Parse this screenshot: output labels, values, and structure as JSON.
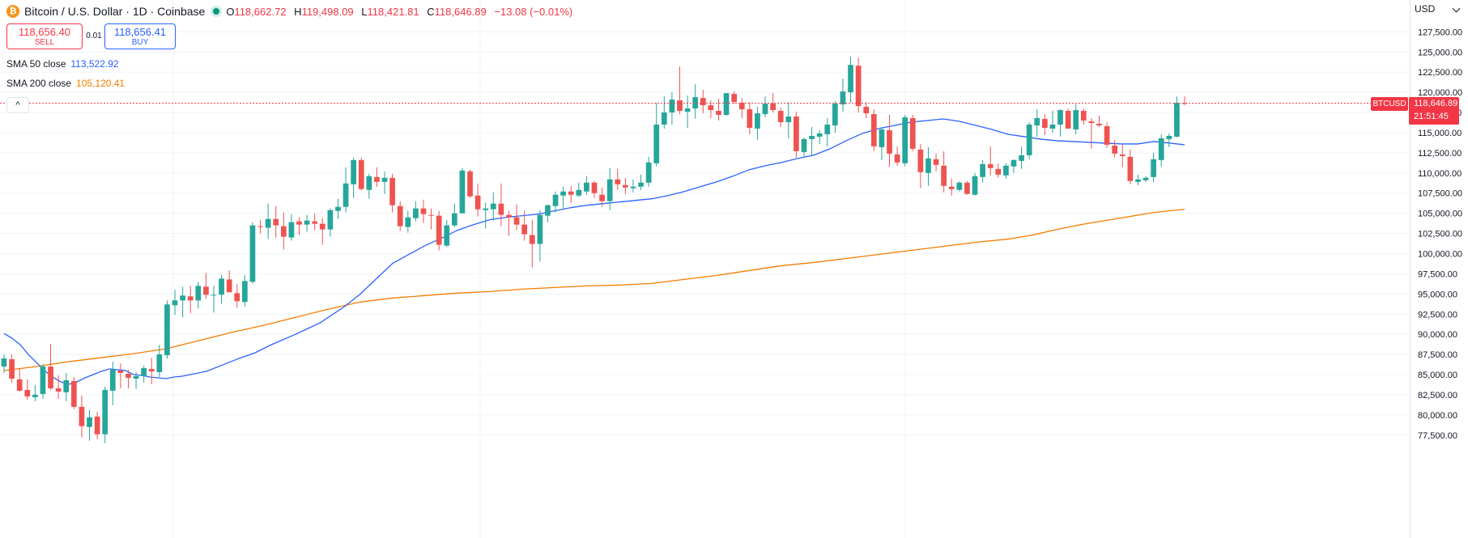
{
  "header": {
    "coin_icon_glyph": "₿",
    "symbol": "Bitcoin / U.S. Dollar · 1D · Coinbase",
    "open_label": "O",
    "open": "118,662.72",
    "high_label": "H",
    "high": "119,498.09",
    "low_label": "L",
    "low": "118,421.81",
    "close_label": "C",
    "close": "118,646.89",
    "change": "−13.08 (−0.01%)"
  },
  "trade": {
    "sell_price": "118,656.40",
    "sell_label": "SELL",
    "spread": "0.01",
    "buy_price": "118,656.41",
    "buy_label": "BUY"
  },
  "indicators": [
    {
      "name": "SMA 50 close",
      "value": "113,522.92",
      "color": "#2962ff"
    },
    {
      "name": "SMA 200 close",
      "value": "105,120.41",
      "color": "#f57c00"
    }
  ],
  "collapse_glyph": "^",
  "currency": "USD",
  "price_tag": {
    "symbol": "BTCUSD",
    "price": "118,646.89",
    "countdown": "21:51:45",
    "color": "#f23645"
  },
  "colors": {
    "up": "#26a69a",
    "down": "#ef5350",
    "sma50": "#2962ff",
    "sma200": "#f57c00",
    "grid": "#f0f3fa"
  },
  "chart_data": {
    "type": "candlestick",
    "ylim": [
      76500,
      130000
    ],
    "y_ticks": [
      "77,500.00",
      "80,000.00",
      "82,500.00",
      "85,000.00",
      "87,500.00",
      "90,000.00",
      "92,500.00",
      "95,000.00",
      "97,500.00",
      "100,000.00",
      "102,500.00",
      "105,000.00",
      "107,500.00",
      "110,000.00",
      "112,500.00",
      "115,000.00",
      "117,500.00",
      "120,000.00",
      "122,500.00",
      "125,000.00",
      "127,500.00"
    ],
    "candles": [
      [
        86000,
        87500,
        85200,
        87000
      ],
      [
        86900,
        87500,
        84000,
        84500
      ],
      [
        84400,
        85800,
        82900,
        83000
      ],
      [
        83100,
        84400,
        81900,
        82300
      ],
      [
        82200,
        83700,
        81700,
        82500
      ],
      [
        82600,
        86300,
        82000,
        86000
      ],
      [
        86000,
        88800,
        83100,
        83300
      ],
      [
        83300,
        84900,
        82000,
        82900
      ],
      [
        82800,
        85200,
        81700,
        84300
      ],
      [
        84200,
        84700,
        80700,
        81000
      ],
      [
        81000,
        82400,
        77200,
        78600
      ],
      [
        78500,
        80600,
        76800,
        79700
      ],
      [
        79800,
        80400,
        77000,
        77600
      ],
      [
        77600,
        83500,
        76500,
        83100
      ],
      [
        83000,
        86600,
        81200,
        85600
      ],
      [
        85500,
        86400,
        83300,
        85200
      ],
      [
        85100,
        85600,
        83300,
        84600
      ],
      [
        84500,
        85300,
        83200,
        84800
      ],
      [
        84800,
        86100,
        84000,
        85800
      ],
      [
        85700,
        87100,
        83800,
        85400
      ],
      [
        85300,
        88700,
        84700,
        87500
      ],
      [
        87400,
        94200,
        87000,
        93700
      ],
      [
        93600,
        95500,
        92400,
        94200
      ],
      [
        94200,
        95900,
        92100,
        94800
      ],
      [
        94700,
        96000,
        92600,
        94200
      ],
      [
        94200,
        96500,
        93200,
        96000
      ],
      [
        95900,
        97600,
        94400,
        94900
      ],
      [
        94800,
        96000,
        92700,
        94900
      ],
      [
        94900,
        97400,
        93800,
        96900
      ],
      [
        96800,
        97900,
        95300,
        95200
      ],
      [
        95100,
        96200,
        93300,
        94100
      ],
      [
        94000,
        97300,
        93400,
        96600
      ],
      [
        96500,
        103900,
        96300,
        103500
      ],
      [
        103400,
        104200,
        102500,
        103300
      ],
      [
        103200,
        106200,
        101800,
        104300
      ],
      [
        104300,
        105900,
        102000,
        103500
      ],
      [
        103400,
        105100,
        100500,
        102100
      ],
      [
        102000,
        104900,
        101600,
        103900
      ],
      [
        104000,
        104500,
        102300,
        103600
      ],
      [
        103600,
        104800,
        102700,
        104100
      ],
      [
        104000,
        105000,
        102900,
        103700
      ],
      [
        103700,
        104400,
        101100,
        103000
      ],
      [
        103000,
        105600,
        102100,
        105400
      ],
      [
        105300,
        106800,
        104300,
        105800
      ],
      [
        105800,
        110700,
        105100,
        108700
      ],
      [
        108600,
        111900,
        106900,
        111600
      ],
      [
        111600,
        111900,
        107800,
        108000
      ],
      [
        107900,
        109900,
        106800,
        109600
      ],
      [
        109500,
        110700,
        108300,
        108900
      ],
      [
        108900,
        110200,
        107400,
        109400
      ],
      [
        109400,
        109900,
        105100,
        106000
      ],
      [
        105900,
        106500,
        102800,
        103400
      ],
      [
        103300,
        105300,
        102600,
        104500
      ],
      [
        104400,
        106500,
        104000,
        105600
      ],
      [
        105600,
        106700,
        103800,
        104900
      ],
      [
        104800,
        105600,
        103000,
        104700
      ],
      [
        104700,
        105300,
        100400,
        101100
      ],
      [
        101000,
        104200,
        100800,
        103500
      ],
      [
        103500,
        106200,
        103300,
        105000
      ],
      [
        105000,
        110600,
        105200,
        110300
      ],
      [
        110200,
        110400,
        106900,
        107100
      ],
      [
        107200,
        108700,
        104600,
        105500
      ],
      [
        105400,
        106300,
        103100,
        105600
      ],
      [
        105500,
        107600,
        104100,
        106200
      ],
      [
        106200,
        108700,
        103400,
        104800
      ],
      [
        104800,
        105300,
        102200,
        104500
      ],
      [
        104500,
        106100,
        102900,
        103600
      ],
      [
        103600,
        105300,
        101600,
        102400
      ],
      [
        102300,
        104200,
        98300,
        101200
      ],
      [
        101200,
        105400,
        99000,
        104800
      ],
      [
        104700,
        106100,
        103900,
        106000
      ],
      [
        105900,
        107700,
        105100,
        107300
      ],
      [
        107200,
        108300,
        105500,
        107700
      ],
      [
        107700,
        108400,
        106300,
        107300
      ],
      [
        107200,
        108800,
        107000,
        107900
      ],
      [
        107700,
        109600,
        107300,
        108800
      ],
      [
        108800,
        109000,
        106900,
        107500
      ],
      [
        107300,
        108200,
        105800,
        106500
      ],
      [
        106500,
        110600,
        105400,
        109200
      ],
      [
        109200,
        110500,
        107900,
        108600
      ],
      [
        108500,
        109400,
        107400,
        108200
      ],
      [
        108100,
        109200,
        107600,
        108300
      ],
      [
        108300,
        109800,
        107900,
        108800
      ],
      [
        108800,
        112000,
        108300,
        111300
      ],
      [
        111200,
        118700,
        110800,
        116000
      ],
      [
        116000,
        119500,
        115500,
        117500
      ],
      [
        117500,
        120000,
        116000,
        119100
      ],
      [
        119000,
        123200,
        117300,
        117700
      ],
      [
        117600,
        119600,
        115600,
        118000
      ],
      [
        118000,
        121000,
        116700,
        119400
      ],
      [
        119300,
        120300,
        117400,
        118400
      ],
      [
        118400,
        119000,
        116800,
        117800
      ],
      [
        117700,
        119200,
        116500,
        117200
      ],
      [
        117200,
        119800,
        117100,
        119900
      ],
      [
        119800,
        120100,
        118600,
        118800
      ],
      [
        118700,
        119300,
        116800,
        117900
      ],
      [
        117900,
        118800,
        114800,
        115600
      ],
      [
        115500,
        118200,
        114100,
        117400
      ],
      [
        117300,
        119500,
        116900,
        118600
      ],
      [
        118600,
        119900,
        117500,
        117800
      ],
      [
        117700,
        118100,
        115700,
        116300
      ],
      [
        116300,
        118800,
        114300,
        117000
      ],
      [
        117000,
        117600,
        111900,
        112700
      ],
      [
        112600,
        114400,
        111900,
        114200
      ],
      [
        114200,
        115700,
        112100,
        114600
      ],
      [
        114500,
        115300,
        113600,
        114900
      ],
      [
        114800,
        116800,
        113300,
        116000
      ],
      [
        115900,
        118900,
        115000,
        118600
      ],
      [
        118500,
        121700,
        117600,
        120100
      ],
      [
        120000,
        124400,
        118700,
        123400
      ],
      [
        123300,
        124300,
        117500,
        118300
      ],
      [
        118200,
        118800,
        116800,
        117400
      ],
      [
        117300,
        117900,
        112700,
        113300
      ],
      [
        113200,
        115700,
        111600,
        115400
      ],
      [
        115300,
        117200,
        110800,
        112400
      ],
      [
        112300,
        113300,
        110900,
        111300
      ],
      [
        111200,
        117200,
        110800,
        116900
      ],
      [
        116800,
        117200,
        112700,
        113000
      ],
      [
        112900,
        113600,
        108100,
        110100
      ],
      [
        110000,
        113200,
        108400,
        111800
      ],
      [
        111700,
        112400,
        110200,
        111000
      ],
      [
        110900,
        112700,
        107600,
        108400
      ],
      [
        108300,
        109300,
        107200,
        108000
      ],
      [
        107900,
        109000,
        107700,
        108800
      ],
      [
        108800,
        109000,
        107300,
        107400
      ],
      [
        107300,
        110000,
        107200,
        109600
      ],
      [
        109500,
        111600,
        108800,
        111100
      ],
      [
        111100,
        113300,
        109700,
        110600
      ],
      [
        110500,
        111200,
        109400,
        109800
      ],
      [
        109700,
        111200,
        109300,
        110900
      ],
      [
        110800,
        111700,
        110000,
        111600
      ],
      [
        111500,
        113300,
        110500,
        112200
      ],
      [
        112200,
        116300,
        111700,
        116000
      ],
      [
        115900,
        117900,
        114500,
        116800
      ],
      [
        116700,
        117300,
        114700,
        115600
      ],
      [
        115500,
        117700,
        115000,
        116000
      ],
      [
        116000,
        117900,
        114500,
        117800
      ],
      [
        117700,
        118000,
        115800,
        115500
      ],
      [
        115400,
        118500,
        114800,
        117800
      ],
      [
        117700,
        118000,
        116000,
        116500
      ],
      [
        116400,
        116800,
        113000,
        116200
      ],
      [
        116100,
        117100,
        115700,
        115900
      ],
      [
        115800,
        116300,
        113100,
        113500
      ],
      [
        113400,
        114100,
        111900,
        112400
      ],
      [
        112300,
        113600,
        110700,
        112100
      ],
      [
        112000,
        112900,
        108600,
        109000
      ],
      [
        108900,
        109800,
        108500,
        109200
      ],
      [
        109100,
        109600,
        108900,
        109400
      ],
      [
        109500,
        112500,
        108900,
        111700
      ],
      [
        111600,
        114800,
        110800,
        114300
      ],
      [
        114200,
        114900,
        113200,
        114600
      ],
      [
        114500,
        119500,
        114400,
        118700
      ],
      [
        118662.72,
        119498.09,
        118421.81,
        118646.89
      ]
    ],
    "sma50": [
      [
        0,
        90100
      ],
      [
        10,
        89500
      ],
      [
        20,
        88700
      ],
      [
        30,
        87500
      ],
      [
        40,
        86500
      ],
      [
        50,
        85500
      ],
      [
        60,
        84700
      ],
      [
        70,
        84100
      ],
      [
        80,
        83800
      ],
      [
        90,
        84100
      ],
      [
        100,
        84600
      ],
      [
        110,
        85000
      ],
      [
        120,
        85400
      ],
      [
        130,
        85700
      ],
      [
        140,
        85600
      ],
      [
        150,
        85500
      ],
      [
        160,
        85000
      ],
      [
        170,
        84900
      ],
      [
        180,
        84700
      ],
      [
        190,
        84600
      ],
      [
        200,
        84500
      ],
      [
        210,
        84700
      ],
      [
        220,
        84800
      ],
      [
        230,
        85000
      ],
      [
        250,
        85400
      ],
      [
        270,
        86200
      ],
      [
        290,
        87000
      ],
      [
        310,
        87700
      ],
      [
        330,
        88700
      ],
      [
        360,
        90000
      ],
      [
        390,
        91400
      ],
      [
        420,
        93400
      ],
      [
        440,
        95000
      ],
      [
        460,
        96900
      ],
      [
        480,
        98800
      ],
      [
        500,
        99900
      ],
      [
        520,
        101000
      ],
      [
        540,
        101900
      ],
      [
        560,
        102900
      ],
      [
        580,
        103600
      ],
      [
        600,
        104200
      ],
      [
        620,
        104500
      ],
      [
        640,
        104700
      ],
      [
        660,
        104900
      ],
      [
        680,
        105300
      ],
      [
        700,
        105700
      ],
      [
        720,
        106000
      ],
      [
        740,
        106200
      ],
      [
        760,
        106400
      ],
      [
        780,
        106600
      ],
      [
        800,
        106800
      ],
      [
        820,
        107200
      ],
      [
        840,
        107700
      ],
      [
        860,
        108300
      ],
      [
        880,
        108900
      ],
      [
        900,
        109600
      ],
      [
        920,
        110400
      ],
      [
        940,
        110900
      ],
      [
        960,
        111300
      ],
      [
        980,
        111800
      ],
      [
        1000,
        112200
      ],
      [
        1020,
        113000
      ],
      [
        1040,
        114000
      ],
      [
        1060,
        114900
      ],
      [
        1080,
        115500
      ],
      [
        1100,
        115900
      ],
      [
        1120,
        116300
      ],
      [
        1140,
        116500
      ],
      [
        1160,
        116700
      ],
      [
        1180,
        116400
      ],
      [
        1200,
        115900
      ],
      [
        1220,
        115400
      ],
      [
        1240,
        114800
      ],
      [
        1260,
        114500
      ],
      [
        1280,
        114200
      ],
      [
        1300,
        114000
      ],
      [
        1320,
        113900
      ],
      [
        1340,
        113800
      ],
      [
        1360,
        113700
      ],
      [
        1380,
        113600
      ],
      [
        1400,
        113600
      ],
      [
        1420,
        113900
      ],
      [
        1440,
        113700
      ],
      [
        1458,
        113500
      ]
    ],
    "sma200": [
      [
        0,
        85500
      ],
      [
        40,
        86000
      ],
      [
        80,
        86600
      ],
      [
        120,
        87100
      ],
      [
        160,
        87600
      ],
      [
        200,
        88200
      ],
      [
        240,
        89200
      ],
      [
        280,
        90200
      ],
      [
        320,
        91100
      ],
      [
        360,
        92100
      ],
      [
        400,
        93100
      ],
      [
        440,
        94000
      ],
      [
        480,
        94500
      ],
      [
        520,
        94800
      ],
      [
        560,
        95100
      ],
      [
        600,
        95300
      ],
      [
        640,
        95600
      ],
      [
        680,
        95800
      ],
      [
        720,
        96000
      ],
      [
        760,
        96100
      ],
      [
        800,
        96300
      ],
      [
        840,
        96800
      ],
      [
        880,
        97300
      ],
      [
        920,
        97900
      ],
      [
        960,
        98500
      ],
      [
        1000,
        98900
      ],
      [
        1040,
        99400
      ],
      [
        1080,
        99900
      ],
      [
        1120,
        100400
      ],
      [
        1160,
        100900
      ],
      [
        1200,
        101400
      ],
      [
        1240,
        101800
      ],
      [
        1270,
        102300
      ],
      [
        1300,
        103000
      ],
      [
        1330,
        103600
      ],
      [
        1360,
        104100
      ],
      [
        1390,
        104600
      ],
      [
        1420,
        105100
      ],
      [
        1458,
        105500
      ]
    ]
  }
}
